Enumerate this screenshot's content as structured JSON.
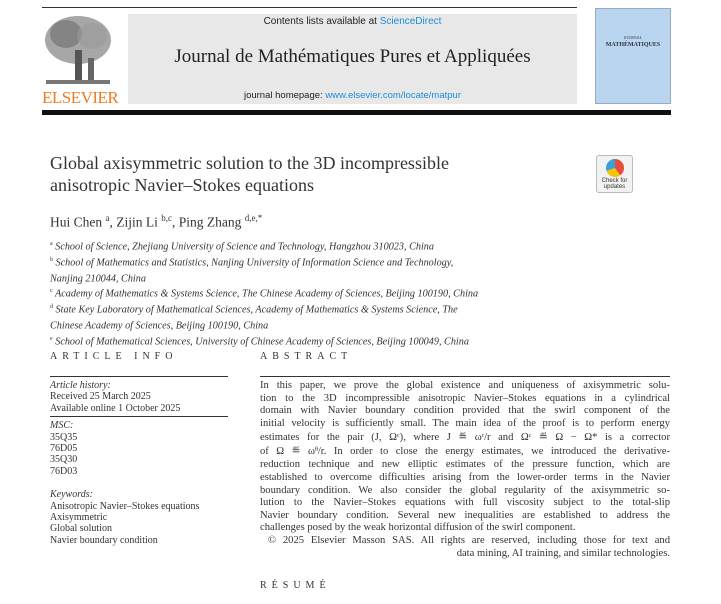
{
  "header": {
    "publisher_logo": "ELSEVIER",
    "contents_prefix": "Contents lists available at ",
    "contents_link": "ScienceDirect",
    "journal_title": "Journal de Mathématiques Pures et Appliquées",
    "homepage_prefix": "journal homepage: ",
    "homepage_link": "www.elsevier.com/locate/matpur",
    "cover_label_1": "JOURNAL",
    "cover_label_2": "MATHÉMATIQUES",
    "check_updates": "Check for updates"
  },
  "article": {
    "title_lines": [
      "Global axisymmetric solution to the 3D incompressible",
      "anisotropic Navier–Stokes equations"
    ],
    "authors": [
      {
        "name": "Hui Chen",
        "sup": "a"
      },
      {
        "name": "Zijin Li",
        "sup": "b,c"
      },
      {
        "name": "Ping Zhang",
        "sup": "d,e,*"
      }
    ],
    "affiliation_lines": [
      {
        "sup": "a",
        "text": " School of Science, Zhejiang University of Science and Technology, Hangzhou 310023, China"
      },
      {
        "sup": "b",
        "text": " School of Mathematics and Statistics, Nanjing University of Information Science and Technology,"
      },
      {
        "sup": "",
        "text": "Nanjing 210044, China"
      },
      {
        "sup": "c",
        "text": " Academy of Mathematics & Systems Science, The Chinese Academy of Sciences, Beijing 100190, China"
      },
      {
        "sup": "d",
        "text": " State Key Laboratory of Mathematical Sciences, Academy of Mathematics & Systems Science, The"
      },
      {
        "sup": "",
        "text": "Chinese Academy of Sciences, Beijing 100190, China"
      },
      {
        "sup": "e",
        "text": " School of Mathematical Sciences, University of Chinese Academy of Sciences, Beijing 100049, China"
      }
    ]
  },
  "article_info": {
    "heading": "ARTICLE INFO",
    "history_label": "Article history:",
    "received": "Received 25 March 2025",
    "online": "Available online 1 October 2025",
    "msc_label": "MSC:",
    "msc": [
      "35Q35",
      "76D05",
      "35Q30",
      "76D03"
    ],
    "keywords_label": "Keywords:",
    "keywords": [
      "Anisotropic Navier–Stokes equations",
      "Axisymmetric",
      "Global solution",
      "Navier boundary condition"
    ]
  },
  "abstract": {
    "heading": "ABSTRACT",
    "lines": [
      "In this paper, we prove the global existence and uniqueness of axisymmetric solu-",
      "tion to the 3D incompressible anisotropic Navier–Stokes equations in a cylindrical",
      "domain with Navier boundary condition provided that the swirl component of the",
      "initial velocity is sufficiently small. The main idea of the proof is to perform energy",
      "estimates for the pair (J, Ωᶜ), where J ≝ ωʳ/r and Ωᶜ ≝ Ω − Ω* is a corrector",
      "of Ω ≝ ωᶿ/r. In order to close the energy estimates, we introduced the derivative-",
      "reduction technique and new elliptic estimates of the pressure function, which are",
      "established to overcome difficulties arising from the lower-order terms in the Navier",
      "boundary condition. We also consider the global regularity of the axisymmetric so-",
      "lution to the Navier–Stokes equations with full viscosity subject to the total-slip",
      "Navier boundary condition. Several new inequalities are established to address the",
      "challenges posed by the weak horizontal diffusion of the swirl component."
    ],
    "copyright_line_1": "© 2025 Elsevier Masson SAS. All rights are reserved, including those for text and",
    "copyright_line_2": "data mining, AI training, and similar technologies."
  },
  "resume": {
    "heading": "RÉSUMÉ"
  },
  "colors": {
    "elsevier_orange": "#f07c22",
    "link_blue": "#1e8bd6",
    "header_gray": "#e8e8e8",
    "cover_blue": "#b9d5f0"
  }
}
